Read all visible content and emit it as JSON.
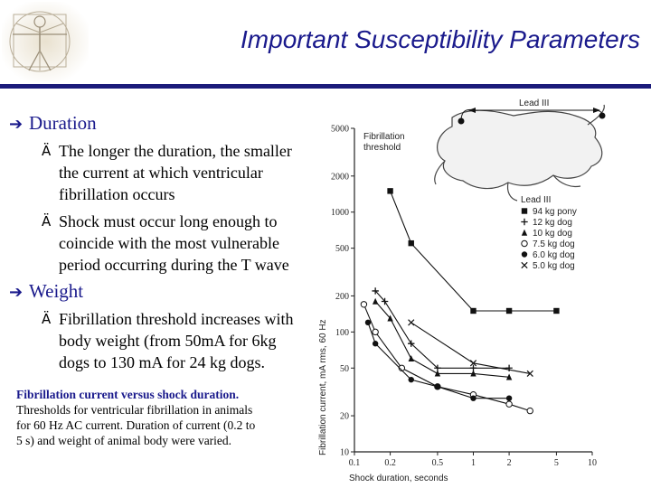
{
  "slide": {
    "title": "Important Susceptibility Parameters",
    "bullets": [
      {
        "label": "Duration",
        "subs": [
          {
            "lines": [
              "The longer the duration, the smaller",
              "the current at which ventricular",
              "fibrillation occurs"
            ]
          },
          {
            "lines": [
              "Shock must occur long enough to",
              "coincide with the most vulnerable",
              "period occurring during the T wave"
            ]
          }
        ]
      },
      {
        "label": "Weight",
        "subs": [
          {
            "lines": [
              "Fibrillation threshold increases with",
              "body weight (from 50mA for 6kg",
              "dogs to 130 mA for 24 kg dogs."
            ]
          }
        ]
      }
    ],
    "caption": {
      "title": "Fibrillation current versus shock duration.",
      "lines": [
        "Thresholds for ventricular fibrillation in animals",
        "for 60 Hz AC current. Duration of current (0.2 to",
        "5 s) and weight of animal body were varied."
      ]
    }
  },
  "icons": {
    "bullet1": "➔",
    "bullet2": "Ä",
    "logo": "vitruvian-man-icon"
  },
  "colors": {
    "accent": "#1a1a8c",
    "rule": "#1b1b7a"
  },
  "chart_data": {
    "type": "line",
    "title": "Fibrillation threshold",
    "xlabel": "Shock duration, seconds",
    "ylabel": "Fibrillation current, mA rms, 60 Hz",
    "x_scale": "log",
    "y_scale": "log",
    "xlim": [
      0.1,
      10
    ],
    "ylim": [
      10,
      5000
    ],
    "xticks": [
      0.1,
      0.2,
      0.5,
      1,
      2,
      5,
      10
    ],
    "yticks": [
      10,
      20,
      50,
      100,
      200,
      500,
      1000,
      2000,
      5000
    ],
    "lead_label": "Lead III",
    "legend_title": "Lead III",
    "series": [
      {
        "name": "94 kg pony",
        "marker": "square",
        "x": [
          0.2,
          0.3,
          1,
          2,
          5
        ],
        "y": [
          1500,
          550,
          150,
          150,
          150
        ]
      },
      {
        "name": "12 kg dog",
        "marker": "plus",
        "x": [
          0.15,
          0.18,
          0.3,
          0.5,
          1,
          2
        ],
        "y": [
          220,
          180,
          80,
          50,
          50,
          50
        ]
      },
      {
        "name": "10 kg dog",
        "marker": "triangle",
        "x": [
          0.15,
          0.2,
          0.3,
          0.5,
          1,
          2
        ],
        "y": [
          180,
          130,
          60,
          45,
          45,
          42
        ]
      },
      {
        "name": "7.5 kg dog",
        "marker": "circle-open",
        "x": [
          0.12,
          0.15,
          0.25,
          0.5,
          1,
          2,
          3
        ],
        "y": [
          170,
          100,
          50,
          35,
          30,
          25,
          22
        ]
      },
      {
        "name": "6.0 kg dog",
        "marker": "circle-filled",
        "x": [
          0.13,
          0.15,
          0.3,
          0.5,
          1,
          2
        ],
        "y": [
          120,
          80,
          40,
          35,
          28,
          28
        ]
      },
      {
        "name": "5.0 kg dog",
        "marker": "x",
        "x": [
          0.3,
          1,
          3
        ],
        "y": [
          120,
          55,
          45
        ]
      }
    ]
  }
}
